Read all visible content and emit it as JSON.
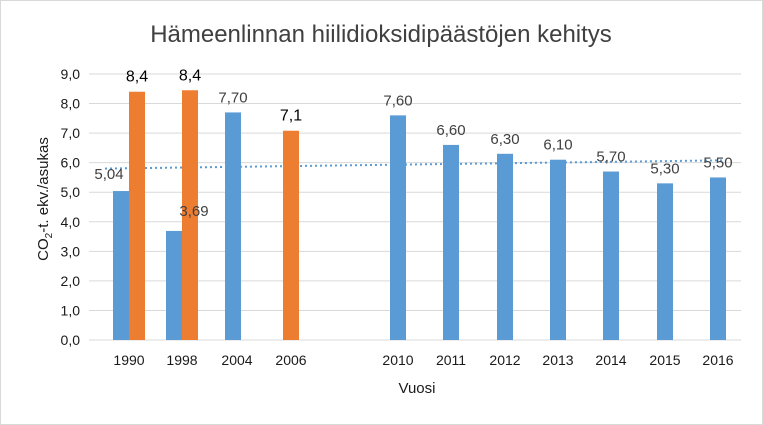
{
  "chart_data": {
    "type": "bar",
    "title": "Hämeenlinnan hiilidioksidipäästöjen kehitys",
    "xlabel": "Vuosi",
    "ylabel_main": "CO",
    "ylabel_sub": "2",
    "ylabel_rest": "-t. ekv./asukas",
    "ylim": [
      0,
      9
    ],
    "ytick_step": 1,
    "yticks": [
      "0,0",
      "1,0",
      "2,0",
      "3,0",
      "4,0",
      "5,0",
      "6,0",
      "7,0",
      "8,0",
      "9,0"
    ],
    "grid": true,
    "categories": [
      "1990",
      "1998",
      "2004",
      "2006",
      "2010",
      "2011",
      "2012",
      "2013",
      "2014",
      "2015",
      "2016"
    ],
    "series": [
      {
        "color": "#5b9bd5",
        "values": [
          5.04,
          3.69,
          7.7,
          null,
          7.6,
          6.6,
          6.3,
          6.1,
          5.7,
          5.3,
          5.5
        ],
        "labels": [
          "5,04",
          "3,69",
          "7,70",
          "",
          "7,60",
          "6,60",
          "6,30",
          "6,10",
          "5,70",
          "5,30",
          "5,50"
        ]
      },
      {
        "color": "#ed7d31",
        "values": [
          8.4,
          8.45,
          null,
          7.08,
          null,
          null,
          null,
          null,
          null,
          null,
          null
        ],
        "labels": [
          "8,4",
          "8,4",
          "",
          "7,1",
          "",
          "",
          "",
          "",
          "",
          "",
          ""
        ]
      }
    ],
    "trendline": {
      "style": "dotted",
      "color": "#5b9bd5",
      "start": 5.8,
      "end": 6.08
    }
  }
}
